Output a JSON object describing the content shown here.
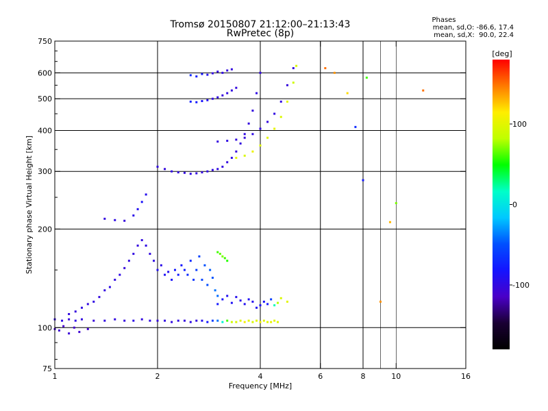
{
  "header": {
    "title": "Tromsø 20150807 21:12:00–21:13:43",
    "subtitle": "RwPretec (8p)",
    "phase_title": "Phases",
    "phase_line1": "mean, sd,O: -86.6, 17.4",
    "phase_line2": "mean, sd,X:  90.0, 22.4"
  },
  "chart_data": {
    "type": "scatter",
    "xlabel": "Frequency [MHz]",
    "ylabel": "Stationary phase Virtual Height [km]",
    "x_scale": "log2",
    "y_scale": "log",
    "xlim": [
      1,
      16
    ],
    "ylim": [
      75,
      750
    ],
    "x_ticks": [
      {
        "v": 1,
        "label": "1"
      },
      {
        "v": 2,
        "label": "2"
      },
      {
        "v": 4,
        "label": "4"
      },
      {
        "v": 6,
        "label": "6"
      },
      {
        "v": 8,
        "label": "8"
      },
      {
        "v": 10,
        "label": "10"
      },
      {
        "v": 16,
        "label": "16"
      }
    ],
    "x_major_grid": [
      2,
      4,
      6,
      8
    ],
    "x_minor_grid": [
      9,
      10
    ],
    "y_ticks": [
      {
        "v": 75,
        "label": "75"
      },
      {
        "v": 100,
        "label": "100"
      },
      {
        "v": 200,
        "label": "200"
      },
      {
        "v": 300,
        "label": "300"
      },
      {
        "v": 400,
        "label": "400"
      },
      {
        "v": 500,
        "label": "500"
      },
      {
        "v": 600,
        "label": "600"
      },
      {
        "v": 750,
        "label": "750"
      }
    ],
    "y_major_grid": [
      100,
      200,
      300,
      400,
      500,
      600
    ],
    "colorbar": {
      "label": "[deg]",
      "min": -180,
      "max": 180,
      "ticks": [
        {
          "v": 100,
          "label": "100"
        },
        {
          "v": 0,
          "label": "0"
        },
        {
          "v": -100,
          "label": "-100"
        }
      ],
      "stops": [
        "#ff0000",
        "#ff7a00",
        "#ffee00",
        "#bfff00",
        "#00ff00",
        "#00ffc8",
        "#00c8ff",
        "#0050ff",
        "#1414ff",
        "#4a00c8",
        "#1a0033",
        "#000000"
      ]
    },
    "series": [
      {
        "x": [
          1.0,
          1.05,
          1.1,
          1.15,
          1.2,
          1.3,
          1.4,
          1.5,
          1.6,
          1.7,
          1.8,
          1.9,
          2.0,
          2.1,
          2.2,
          2.3,
          2.4,
          2.5,
          2.6,
          2.7,
          2.8,
          2.9,
          3.0,
          3.1,
          3.2,
          3.3,
          3.4,
          3.5,
          3.6,
          3.7,
          3.8,
          3.9,
          4.0,
          4.1,
          4.2,
          4.3,
          4.4,
          4.5
        ],
        "y": [
          106,
          105,
          106,
          105,
          106,
          105,
          105,
          106,
          105,
          105,
          106,
          105,
          105,
          105,
          104,
          105,
          105,
          104,
          105,
          105,
          104,
          105,
          105,
          104,
          105,
          104,
          104,
          105,
          104,
          105,
          104,
          105,
          104,
          105,
          104,
          104,
          105,
          104
        ],
        "phase": [
          -100,
          -98,
          -102,
          -97,
          -100,
          -103,
          -99,
          -100,
          -101,
          -96,
          -100,
          -98,
          -102,
          -99,
          -100,
          -98,
          -101,
          -97,
          -100,
          -90,
          -80,
          -60,
          -40,
          10,
          60,
          90,
          95,
          100,
          110,
          100,
          95,
          100,
          105,
          100,
          98,
          102,
          100,
          98
        ]
      },
      {
        "x": [
          1.0,
          1.03,
          1.06,
          1.1,
          1.14,
          1.18,
          1.25
        ],
        "y": [
          99,
          98,
          101,
          96,
          100,
          97,
          99
        ],
        "phase": [
          -110,
          -108,
          -112,
          -105,
          -110,
          -108,
          -109
        ]
      },
      {
        "x": [
          1.1,
          1.15,
          1.2,
          1.25,
          1.3,
          1.35,
          1.4,
          1.45,
          1.5,
          1.55,
          1.6,
          1.65,
          1.7,
          1.75,
          1.8,
          1.85,
          1.9,
          1.95,
          2.0,
          2.05,
          2.1,
          2.15,
          2.2,
          2.25,
          2.3,
          2.35,
          2.4,
          2.45,
          2.5,
          2.55,
          2.6,
          2.65,
          2.7,
          2.75,
          2.8,
          2.85,
          2.9,
          2.95,
          3.0
        ],
        "y": [
          110,
          112,
          115,
          118,
          120,
          124,
          130,
          133,
          140,
          145,
          152,
          160,
          168,
          178,
          185,
          178,
          168,
          160,
          150,
          155,
          145,
          148,
          140,
          150,
          145,
          155,
          150,
          145,
          160,
          140,
          150,
          165,
          140,
          155,
          135,
          150,
          142,
          130,
          125
        ],
        "phase": [
          -100,
          -102,
          -98,
          -100,
          -99,
          -101,
          -100,
          -97,
          -100,
          -98,
          -103,
          -100,
          -99,
          -101,
          -100,
          -98,
          -100,
          -97,
          -90,
          -95,
          -88,
          -92,
          -85,
          -80,
          -78,
          -82,
          -75,
          -70,
          -72,
          -65,
          -60,
          -58,
          -55,
          -50,
          -52,
          -45,
          -48,
          -40,
          -42
        ]
      },
      {
        "x": [
          3.0,
          3.1,
          3.2,
          3.3,
          3.4,
          3.5,
          3.6,
          3.7,
          3.8,
          3.9,
          4.0,
          4.1,
          4.2,
          4.3,
          4.4,
          4.5,
          4.6,
          4.8
        ],
        "y": [
          118,
          122,
          125,
          119,
          124,
          121,
          118,
          122,
          120,
          115,
          117,
          120,
          118,
          122,
          117,
          119,
          123,
          120
        ],
        "phase": [
          -80,
          -85,
          -90,
          -88,
          -92,
          -95,
          -90,
          -88,
          -92,
          -90,
          -88,
          -85,
          -80,
          -60,
          20,
          80,
          95,
          100
        ]
      },
      {
        "x": [
          3.0,
          3.05,
          3.1,
          3.15,
          3.2
        ],
        "y": [
          170,
          168,
          165,
          163,
          160
        ],
        "phase": [
          60,
          65,
          70,
          60,
          55
        ]
      },
      {
        "x": [
          1.4,
          1.5,
          1.6,
          1.7,
          1.75,
          1.8,
          1.85
        ],
        "y": [
          215,
          213,
          212,
          220,
          230,
          242,
          255
        ],
        "phase": [
          -100,
          -98,
          -102,
          -95,
          -90,
          -85,
          -92
        ]
      },
      {
        "x": [
          2.0,
          2.1,
          2.2,
          2.3,
          2.4,
          2.5,
          2.6,
          2.7,
          2.8,
          2.9,
          3.0,
          3.1,
          3.2,
          3.3,
          3.4,
          3.5,
          3.6,
          3.7,
          3.8,
          3.9,
          4.0
        ],
        "y": [
          310,
          305,
          300,
          298,
          297,
          295,
          296,
          298,
          300,
          303,
          305,
          310,
          320,
          330,
          345,
          365,
          390,
          420,
          460,
          520,
          600
        ],
        "phase": [
          -100,
          -102,
          -98,
          -100,
          -101,
          -99,
          -100,
          -102,
          -98,
          -100,
          -99,
          -101,
          -100,
          -98,
          -102,
          -100,
          -99,
          -101,
          -100,
          -98,
          -100
        ]
      },
      {
        "x": [
          3.0,
          3.2,
          3.4,
          3.6,
          3.8,
          4.0,
          4.2,
          4.4,
          4.6,
          4.8,
          5.0
        ],
        "y": [
          370,
          372,
          375,
          380,
          390,
          405,
          425,
          450,
          490,
          550,
          620
        ],
        "phase": [
          -100,
          -98,
          -100,
          -102,
          -98,
          -100,
          -101,
          -99,
          -100,
          -102,
          -100
        ]
      },
      {
        "x": [
          3.4,
          3.6,
          3.8,
          4.0,
          4.2,
          4.4,
          4.6,
          4.8,
          5.0,
          5.1
        ],
        "y": [
          330,
          335,
          345,
          360,
          380,
          405,
          440,
          490,
          560,
          630
        ],
        "phase": [
          100,
          95,
          105,
          98,
          100,
          102,
          96,
          100,
          90,
          95
        ]
      },
      {
        "x": [
          2.5,
          2.6,
          2.7,
          2.8,
          2.9,
          3.0,
          3.1,
          3.2,
          3.3
        ],
        "y": [
          590,
          585,
          595,
          592,
          598,
          605,
          600,
          610,
          615
        ],
        "phase": [
          -70,
          -75,
          -80,
          -90,
          -100,
          -102,
          -98,
          -100,
          -101
        ]
      },
      {
        "x": [
          2.5,
          2.6,
          2.7,
          2.8,
          2.9,
          3.0,
          3.1,
          3.2,
          3.3,
          3.4
        ],
        "y": [
          490,
          488,
          492,
          495,
          500,
          505,
          512,
          520,
          530,
          540
        ],
        "phase": [
          -75,
          -80,
          -85,
          -90,
          -100,
          -98,
          -102,
          -100,
          -99,
          -101
        ]
      },
      {
        "x": [
          6.2,
          6.6,
          7.2,
          7.6,
          8.0,
          8.2,
          9.0,
          9.6,
          10.0,
          12.0
        ],
        "y": [
          620,
          600,
          520,
          410,
          282,
          580,
          120,
          210,
          240,
          530
        ],
        "phase": [
          150,
          140,
          120,
          -70,
          -80,
          60,
          140,
          130,
          70,
          150
        ]
      }
    ]
  }
}
